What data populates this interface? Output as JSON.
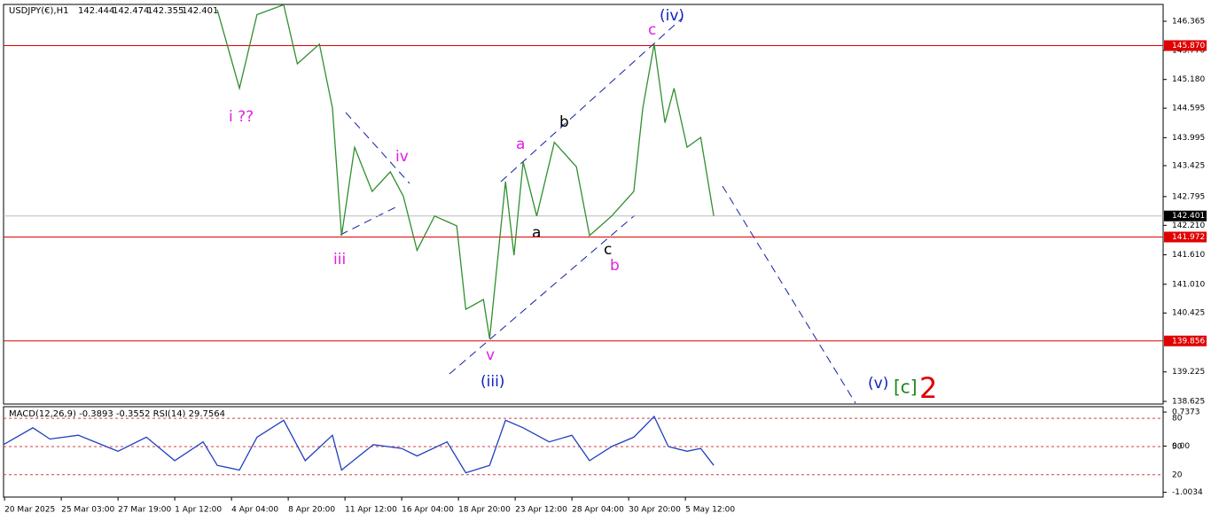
{
  "chart_data": {
    "type": "line",
    "symbol": "USDJPY(€),H1",
    "ohlc": [
      142.444,
      142.474,
      142.355,
      142.401
    ],
    "categories": [
      "20 Mar 2025",
      "25 Mar 03:00",
      "27 Mar 19:00",
      "1 Apr 12:00",
      "4 Apr 04:00",
      "8 Apr 20:00",
      "11 Apr 12:00",
      "16 Apr 04:00",
      "18 Apr 20:00",
      "23 Apr 12:00",
      "28 Apr 04:00",
      "30 Apr 20:00",
      "5 May 12:00"
    ],
    "xlim": [
      -0.08,
      20.42
    ],
    "ylim": [
      138.589,
      146.708
    ],
    "yticks": [
      146.365,
      {
        "value": 145.77,
        "label": "145.770"
      },
      {
        "value": 145.18,
        "label": "145.180"
      },
      144.595,
      143.995,
      143.425,
      142.795,
      {
        "value": 142.21,
        "label": "142.210"
      },
      {
        "value": 141.61,
        "label": "141.610"
      },
      {
        "value": 141.01,
        "label": "141.010"
      },
      140.425,
      139.225,
      138.625
    ],
    "levels": [
      {
        "value": 145.87,
        "label": "145.870"
      },
      141.972,
      139.856
    ],
    "levels_color": "#e00000",
    "current_price": 142.401,
    "series": [
      {
        "name": "USDJPY",
        "color": "#2f8f2f",
        "x": [
          3.75,
          4.14,
          4.45,
          4.92,
          5.16,
          5.55,
          5.78,
          5.94,
          6.17,
          6.48,
          6.8,
          7.03,
          7.27,
          7.58,
          7.97,
          8.13,
          8.44,
          8.55,
          8.83,
          8.98,
          9.14,
          9.38,
          9.69,
          10.08,
          10.31,
          10.7,
          11.09,
          11.25,
          11.45,
          11.64,
          11.8,
          12.03,
          12.27,
          12.5
        ],
        "values": [
          146.6,
          145.0,
          146.5,
          146.7,
          145.5,
          145.9,
          144.6,
          142.0,
          143.8,
          142.9,
          143.3,
          142.8,
          141.7,
          142.4,
          142.2,
          140.5,
          140.7,
          139.9,
          143.1,
          141.6,
          143.5,
          142.4,
          143.9,
          143.4,
          142.0,
          142.4,
          142.9,
          144.6,
          145.9,
          144.3,
          145.0,
          143.8,
          144.0,
          142.4
        ]
      }
    ],
    "indicator": {
      "label": "MACD(12,26,9) -0.3893 -0.3552 RSI(14) 29.7564",
      "macd_ylim": [
        -1.107,
        0.854
      ],
      "macd_ticks": [
        0.7373,
        {
          "value": 0,
          "label": "0.00"
        },
        -1.0034
      ],
      "rsi_ylim": [
        -3.8,
        92.4
      ],
      "rsi_ticks": [
        80,
        50,
        20
      ],
      "rsi": {
        "name": "RSI",
        "color": "#1f3fbf",
        "x": [
          -0.08,
          0.5,
          0.8,
          1.3,
          2.0,
          2.5,
          3.0,
          3.5,
          3.75,
          4.14,
          4.45,
          4.92,
          5.3,
          5.78,
          5.94,
          6.5,
          7.0,
          7.27,
          7.8,
          8.13,
          8.55,
          8.83,
          9.14,
          9.6,
          10.0,
          10.31,
          10.7,
          11.09,
          11.45,
          11.7,
          12.03,
          12.27,
          12.5
        ],
        "values": [
          50,
          70,
          58,
          62,
          45,
          60,
          35,
          55,
          30,
          25,
          60,
          78,
          35,
          62,
          25,
          52,
          48,
          40,
          55,
          22,
          30,
          78,
          70,
          55,
          62,
          35,
          50,
          60,
          82,
          50,
          45,
          48,
          30
        ]
      }
    },
    "annotations": [
      "i ??",
      "iii",
      "iv",
      "v",
      "(iii)",
      "a",
      "b",
      "a",
      "c",
      "b",
      "c",
      "(iv)",
      "(v)",
      "[c]",
      "2"
    ]
  }
}
